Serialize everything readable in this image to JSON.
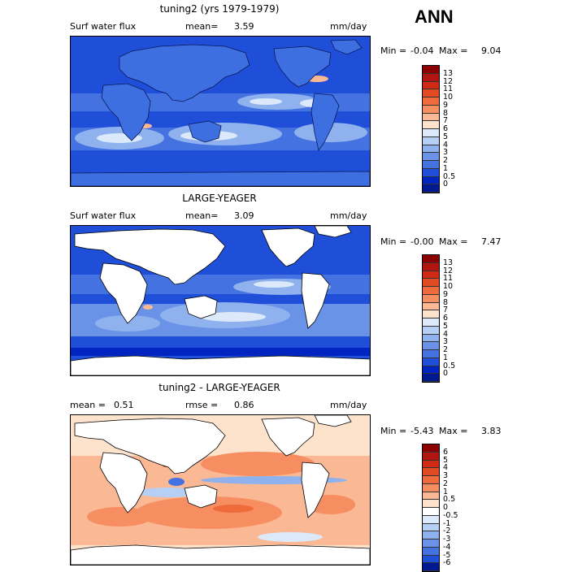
{
  "season": "ANN",
  "colors": {
    "land": "#ffffff",
    "land_model": "#3d6fe0"
  },
  "panels": [
    {
      "id": "model",
      "title": "tuning2 (yrs 1979-1979)",
      "left_label": "Surf water flux",
      "stat_label": "mean=",
      "stat_value": "3.59",
      "units": "mm/day",
      "min_label": "Min =",
      "min_value": "-0.04",
      "max_label": "Max =",
      "max_value": "9.04",
      "colorbar": {
        "labels": [
          "13",
          "12",
          "11",
          "10",
          "9",
          "8",
          "7",
          "6",
          "5",
          "4",
          "3",
          "2",
          "1",
          "0.5",
          "0"
        ],
        "colors": [
          "#8b0000",
          "#b0150f",
          "#d02a14",
          "#e24a22",
          "#ef6b3c",
          "#f78e62",
          "#fab894",
          "#fde2cc",
          "#dce9fa",
          "#b6cff4",
          "#8fb2ee",
          "#6a93e8",
          "#4472e0",
          "#1f4fd8",
          "#0024c0",
          "#001890"
        ]
      }
    },
    {
      "id": "obs",
      "title": "LARGE-YEAGER",
      "left_label": "Surf water flux",
      "stat_label": "mean=",
      "stat_value": "3.09",
      "units": "mm/day",
      "min_label": "Min =",
      "min_value": "-0.00",
      "max_label": "Max =",
      "max_value": "7.47",
      "colorbar": {
        "labels": [
          "13",
          "12",
          "11",
          "10",
          "9",
          "8",
          "7",
          "6",
          "5",
          "4",
          "3",
          "2",
          "1",
          "0.5",
          "0"
        ],
        "colors": [
          "#8b0000",
          "#b0150f",
          "#d02a14",
          "#e24a22",
          "#ef6b3c",
          "#f78e62",
          "#fab894",
          "#fde2cc",
          "#dce9fa",
          "#b6cff4",
          "#8fb2ee",
          "#6a93e8",
          "#4472e0",
          "#1f4fd8",
          "#0024c0",
          "#001890"
        ]
      }
    },
    {
      "id": "diff",
      "title": "tuning2 - LARGE-YEAGER",
      "left_stat_label": "mean =",
      "left_stat_value": "0.51",
      "stat_label": "rmse =",
      "stat_value": "0.86",
      "units": "mm/day",
      "min_label": "Min =",
      "min_value": "-5.43",
      "max_label": "Max =",
      "max_value": "3.83",
      "colorbar": {
        "labels": [
          "6",
          "5",
          "4",
          "3",
          "2",
          "1",
          "0.5",
          "0",
          "-0.5",
          "-1",
          "-2",
          "-3",
          "-4",
          "-5",
          "-6"
        ],
        "colors": [
          "#8b0000",
          "#b0150f",
          "#d02a14",
          "#e24a22",
          "#ef6b3c",
          "#f78e62",
          "#fab894",
          "#fde2cc",
          "#ffffff",
          "#dce9fa",
          "#b6cff4",
          "#8fb2ee",
          "#6a93e8",
          "#4472e0",
          "#1f4fd8",
          "#001890"
        ]
      }
    }
  ]
}
